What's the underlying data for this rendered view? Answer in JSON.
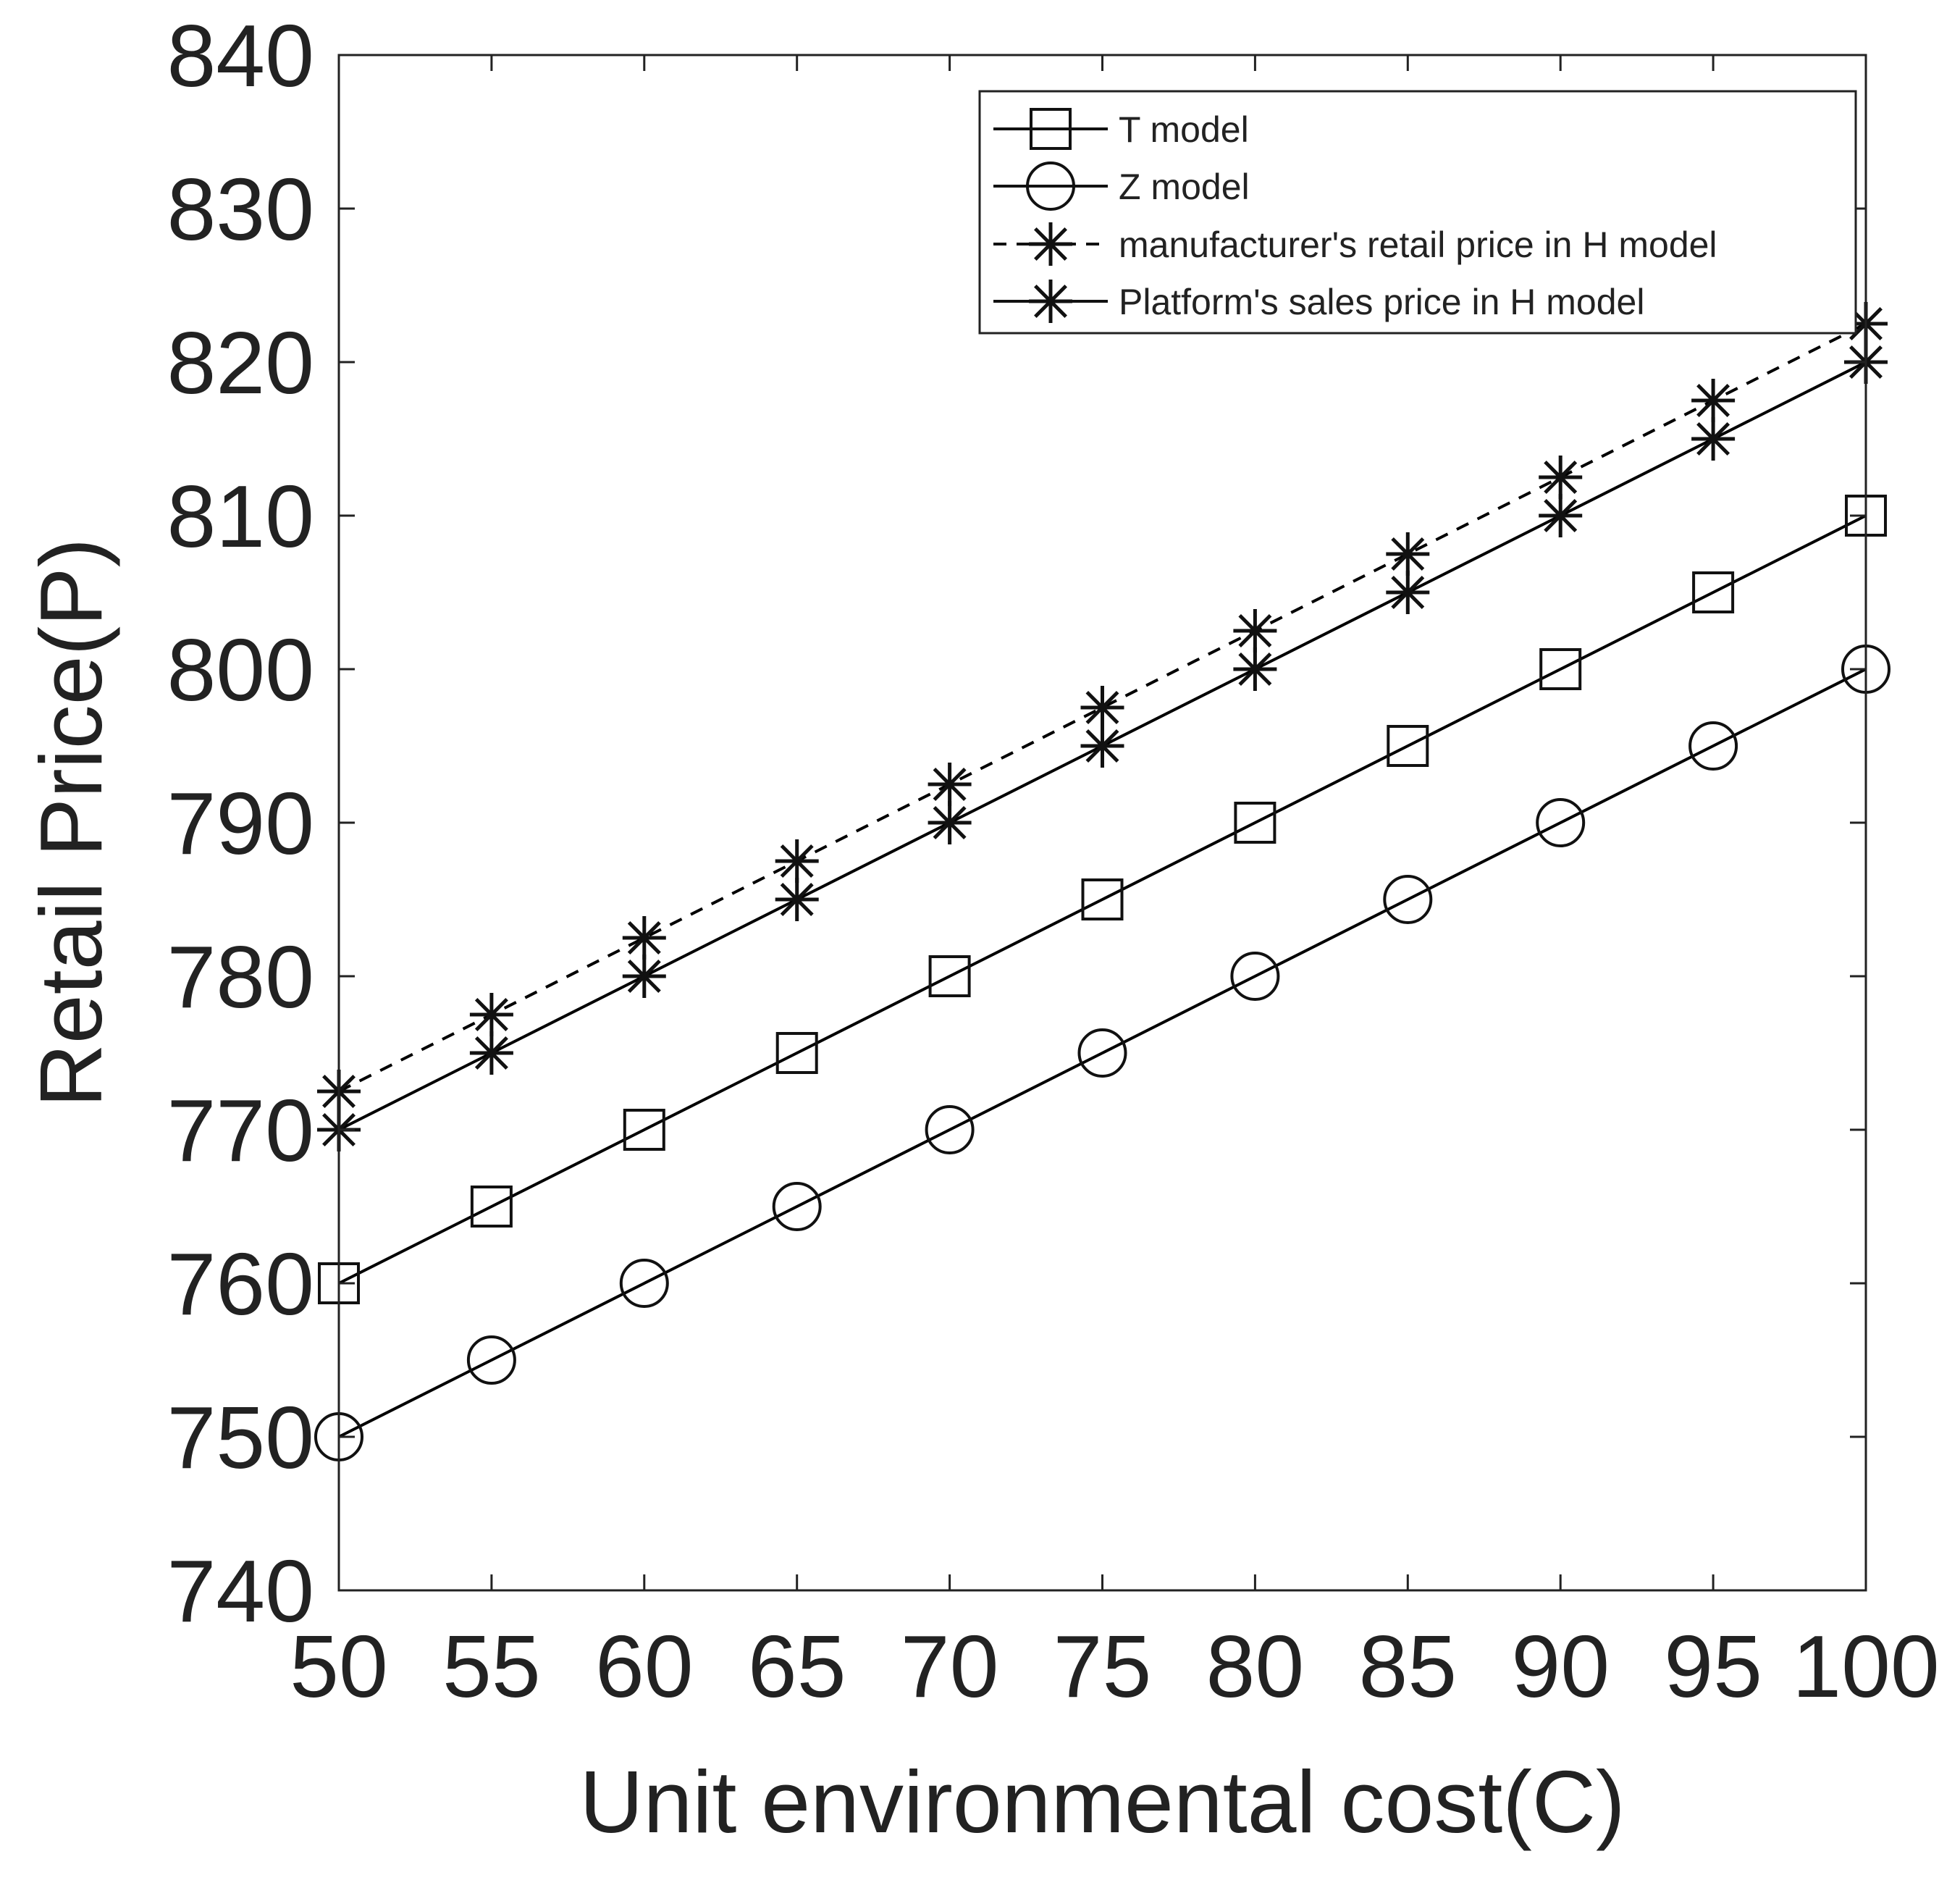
{
  "chart_data": {
    "type": "line",
    "title": "",
    "xlabel": "Unit environmental cost(C)",
    "ylabel": "Retail Price(P)",
    "xlim": [
      50,
      100
    ],
    "ylim": [
      740,
      840
    ],
    "x_ticks": [
      "50",
      "55",
      "60",
      "65",
      "70",
      "75",
      "80",
      "85",
      "90",
      "95",
      "100"
    ],
    "y_ticks": [
      "740",
      "750",
      "760",
      "770",
      "780",
      "790",
      "800",
      "810",
      "820",
      "830",
      "840"
    ],
    "x": [
      50,
      55,
      60,
      65,
      70,
      75,
      80,
      85,
      90,
      95,
      100
    ],
    "grid": false,
    "legend_position": "top-right",
    "series": [
      {
        "name": "T model",
        "marker": "square",
        "line_style": "solid",
        "color": "#000000",
        "values": [
          760,
          765,
          770,
          775,
          780,
          785,
          790,
          795,
          800,
          805,
          810
        ]
      },
      {
        "name": "Z model",
        "marker": "circle",
        "line_style": "solid",
        "color": "#000000",
        "values": [
          750,
          755,
          760,
          765,
          770,
          775,
          780,
          785,
          790,
          795,
          800
        ]
      },
      {
        "name": "manufacturer's retail price in H model",
        "marker": "asterisk",
        "line_style": "dashed",
        "color": "#000000",
        "values": [
          772.5,
          777.5,
          782.5,
          787.5,
          792.5,
          797.5,
          802.5,
          807.5,
          812.5,
          817.5,
          822.5
        ]
      },
      {
        "name": "Platform's sales price in H model",
        "marker": "asterisk",
        "line_style": "solid",
        "color": "#000000",
        "values": [
          770,
          775,
          780,
          785,
          790,
          795,
          800,
          805,
          810,
          815,
          820
        ]
      }
    ]
  }
}
